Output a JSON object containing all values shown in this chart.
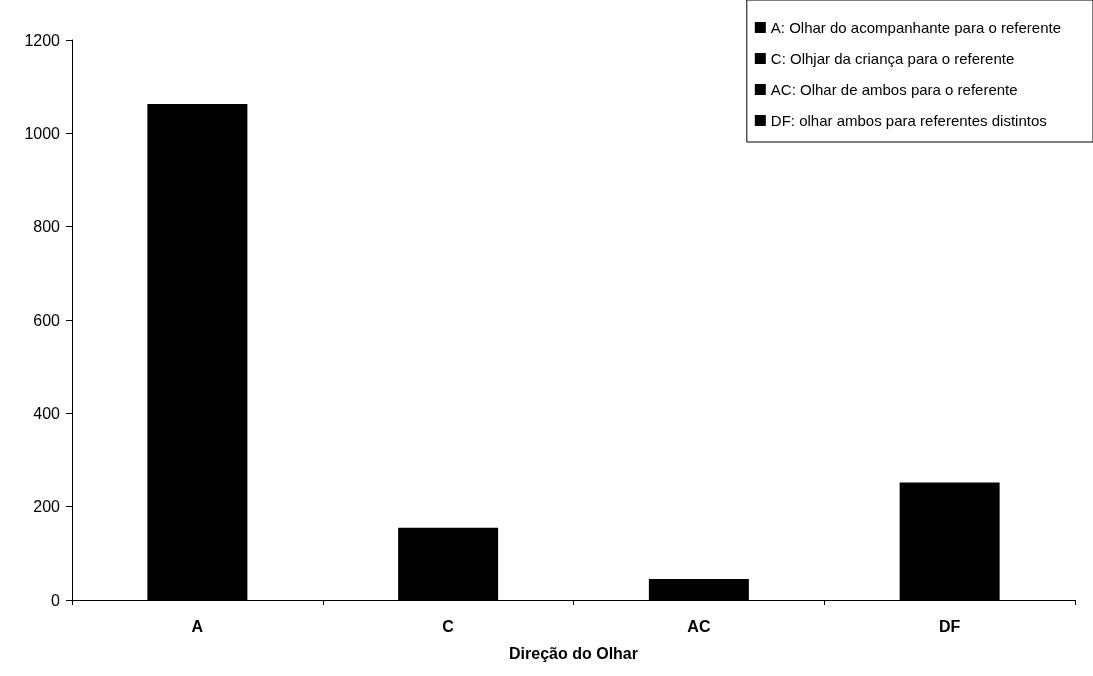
{
  "chart_data": {
    "type": "bar",
    "xlabel": "Direção do Olhar",
    "categories": [
      "A",
      "C",
      "AC",
      "DF"
    ],
    "series": [
      {
        "name": "A: Olhar do acompanhante para o referente",
        "color": "#000000",
        "values": [
          1063,
          null,
          null,
          null
        ]
      },
      {
        "name": "C: Olhjar da criança para o referente",
        "color": "#000000",
        "values": [
          null,
          155,
          null,
          null
        ]
      },
      {
        "name": "AC: Olhar de ambos para o referente",
        "color": "#000000",
        "values": [
          null,
          null,
          45,
          null
        ]
      },
      {
        "name": "DF: olhar ambos para referentes distintos",
        "color": "#000000",
        "values": [
          null,
          null,
          null,
          252
        ]
      }
    ],
    "ylim": [
      0,
      1200
    ],
    "yticks": [
      0,
      200,
      400,
      600,
      800,
      1000,
      1200
    ],
    "grid": false,
    "legend": "top right"
  }
}
